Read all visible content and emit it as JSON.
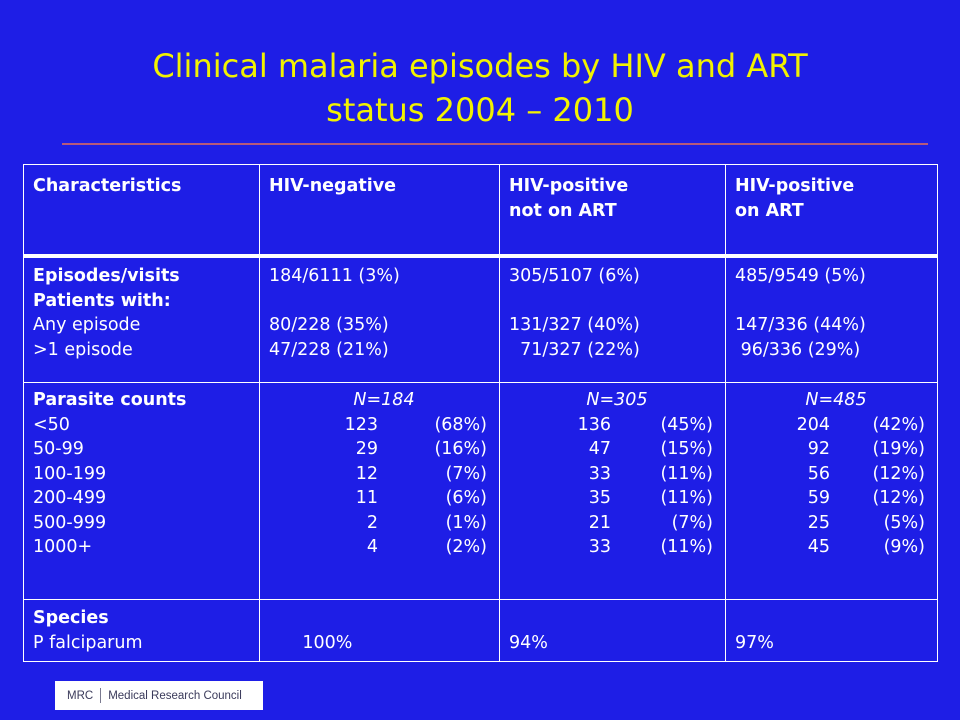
{
  "title_line1": "Clinical malaria episodes by HIV and ART",
  "title_line2": "status 2004 – 2010",
  "headers": [
    "Characteristics",
    "HIV-negative",
    "HIV-positive\nnot on ART",
    "HIV-positive\non ART"
  ],
  "rows": {
    "episodes": {
      "label": "Episodes/visits",
      "values": [
        "184/6111 (3%)",
        "305/5107 (6%)",
        "485/9549 (5%)"
      ]
    },
    "patients": {
      "label": "Patients with:",
      "any_label": "Any episode",
      "any": [
        "80/228 (35%)",
        "131/327 (40%)",
        "147/336 (44%)"
      ],
      "multi_label": ">1 episode",
      "multi": [
        "47/228 (21%)",
        "  71/327 (22%)",
        " 96/336 (29%)"
      ]
    },
    "parasite": {
      "label": "Parasite counts",
      "bins": [
        "<50",
        "50-99",
        "100-199",
        "200-499",
        "500-999",
        "1000+"
      ],
      "n": [
        "N=184",
        "N=305",
        "N=485"
      ],
      "counts": [
        [
          [
            "123",
            "(68%)"
          ],
          [
            "29",
            "(16%)"
          ],
          [
            "12",
            "(7%)"
          ],
          [
            "11",
            "(6%)"
          ],
          [
            "2",
            "(1%)"
          ],
          [
            "4",
            "(2%)"
          ]
        ],
        [
          [
            "136",
            "(45%)"
          ],
          [
            "47",
            "(15%)"
          ],
          [
            "33",
            "(11%)"
          ],
          [
            "35",
            "(11%)"
          ],
          [
            "21",
            "(7%)"
          ],
          [
            "33",
            "(11%)"
          ]
        ],
        [
          [
            "204",
            "(42%)"
          ],
          [
            "92",
            "(19%)"
          ],
          [
            "56",
            "(12%)"
          ],
          [
            "59",
            "(12%)"
          ],
          [
            "25",
            "(5%)"
          ],
          [
            "45",
            "(9%)"
          ]
        ]
      ]
    },
    "species": {
      "label": "Species",
      "sub_label": "P falciparum",
      "values": [
        "      100%",
        "94%",
        "97%"
      ]
    }
  },
  "logo": {
    "left": "MRC",
    "right": "Medical Research Council"
  }
}
